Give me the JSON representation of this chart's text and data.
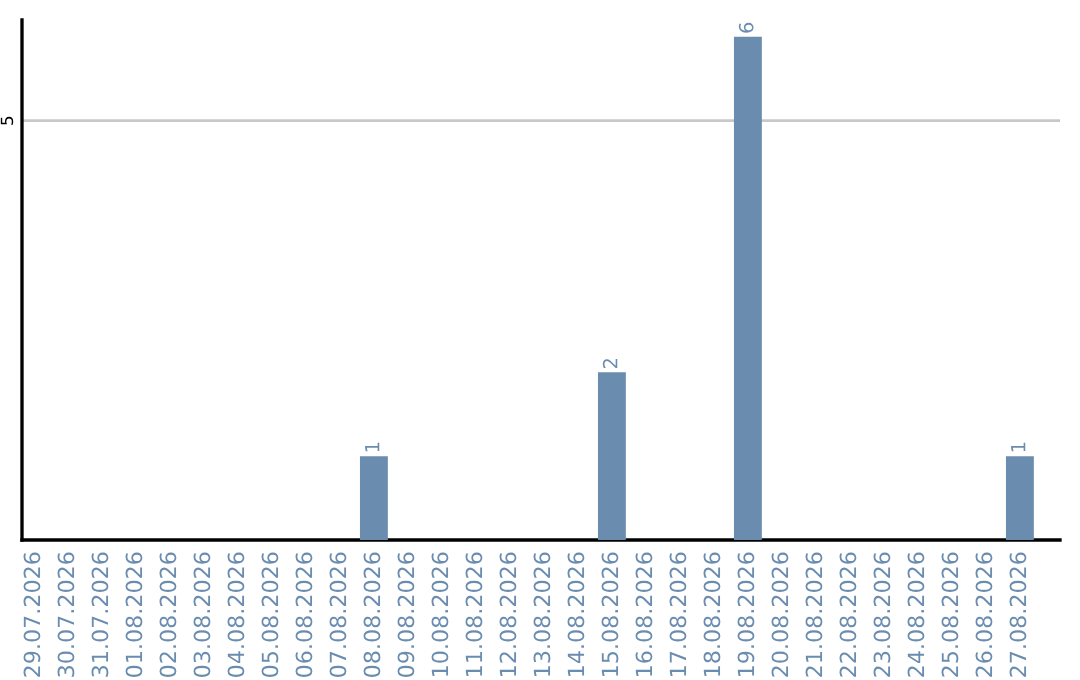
{
  "chart_data": {
    "type": "bar",
    "categories": [
      "29.07.2026",
      "30.07.2026",
      "31.07.2026",
      "01.08.2026",
      "02.08.2026",
      "03.08.2026",
      "04.08.2026",
      "05.08.2026",
      "06.08.2026",
      "07.08.2026",
      "08.08.2026",
      "09.08.2026",
      "10.08.2026",
      "11.08.2026",
      "12.08.2026",
      "13.08.2026",
      "14.08.2026",
      "15.08.2026",
      "16.08.2026",
      "17.08.2026",
      "18.08.2026",
      "19.08.2026",
      "20.08.2026",
      "21.08.2026",
      "22.08.2026",
      "23.08.2026",
      "24.08.2026",
      "25.08.2026",
      "26.08.2026",
      "27.08.2026"
    ],
    "values": [
      0,
      0,
      0,
      0,
      0,
      0,
      0,
      0,
      0,
      0,
      1,
      0,
      0,
      0,
      0,
      0,
      0,
      2,
      0,
      0,
      0,
      6,
      0,
      0,
      0,
      0,
      0,
      0,
      0,
      1
    ],
    "value_labels": [
      null,
      null,
      null,
      null,
      null,
      null,
      null,
      null,
      null,
      null,
      "1",
      null,
      null,
      null,
      null,
      null,
      null,
      "2",
      null,
      null,
      null,
      "6",
      null,
      null,
      null,
      null,
      null,
      null,
      null,
      "1"
    ],
    "color": "#6a8caf",
    "ylim": [
      0,
      6.2
    ],
    "yticks": [
      5
    ],
    "grid": "y",
    "legend": false
  }
}
